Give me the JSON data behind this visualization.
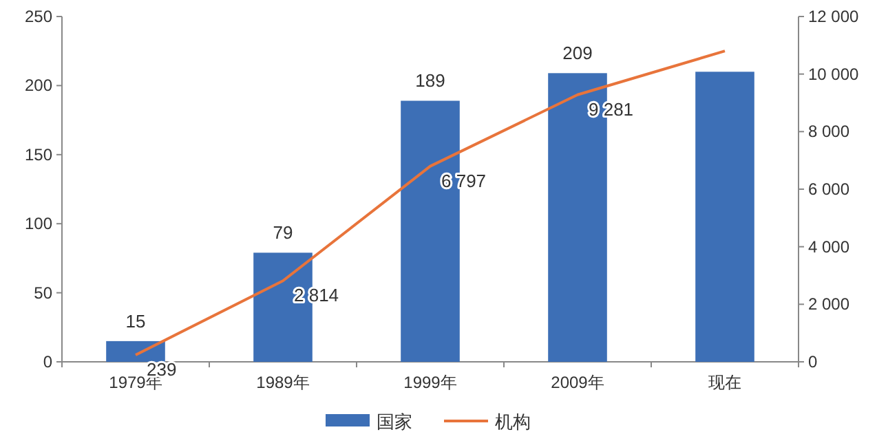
{
  "chart_data": {
    "type": "bar",
    "categories": [
      "1979年",
      "1989年",
      "1999年",
      "2009年",
      "现在"
    ],
    "series": [
      {
        "name": "国家",
        "color": "#3d6fb6",
        "values": [
          15,
          79,
          189,
          209,
          210
        ],
        "value_labels": [
          "15",
          "79",
          "189",
          "209",
          null
        ]
      },
      {
        "name": "机构",
        "type": "line",
        "axis": "y2",
        "color": "#e8743b",
        "values": [
          239,
          2814,
          6797,
          9281,
          10800
        ],
        "value_labels": [
          "239",
          "2 814",
          "6 797",
          "9 281",
          null
        ]
      }
    ],
    "ylim": [
      0,
      250
    ],
    "yticks": [
      0,
      50,
      100,
      150,
      200,
      250
    ],
    "y2lim": [
      0,
      12000
    ],
    "y2ticks": [
      0,
      {
        "value": 2000,
        "label": "2 000"
      },
      {
        "value": 4000,
        "label": "4 000"
      },
      {
        "value": 6000,
        "label": "6 000"
      },
      {
        "value": 8000,
        "label": "8 000"
      },
      {
        "value": 10000,
        "label": "10 000"
      },
      {
        "value": 12000,
        "label": "12 000"
      }
    ],
    "legend": "bottom",
    "marker": "none"
  }
}
